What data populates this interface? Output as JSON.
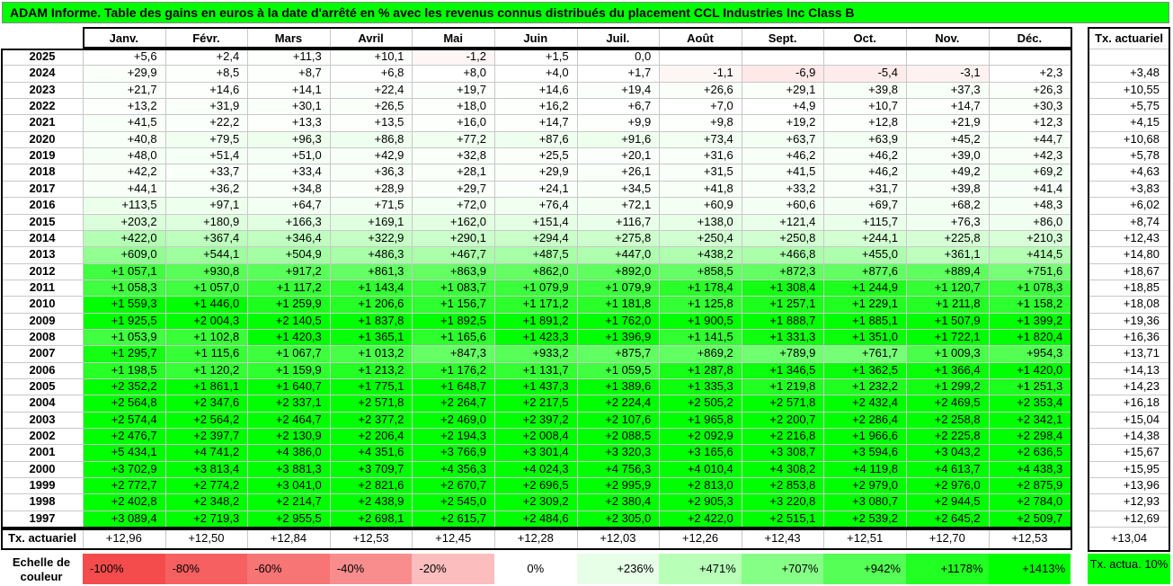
{
  "title": "ADAM Informe. Table des gains en euros à la date d'arrêté en % avec les revenus connus distribués du placement CCL Industries Inc Class B",
  "chart_data": {
    "type": "table",
    "months": [
      "Janv.",
      "Févr.",
      "Mars",
      "Avril",
      "Mai",
      "Juin",
      "Juil.",
      "Août",
      "Sept.",
      "Oct.",
      "Nov.",
      "Déc."
    ],
    "rate_header": "Tx. actuariel",
    "years": [
      "2025",
      "2024",
      "2023",
      "2022",
      "2021",
      "2020",
      "2019",
      "2018",
      "2017",
      "2016",
      "2015",
      "2014",
      "2013",
      "2012",
      "2011",
      "2010",
      "2009",
      "2008",
      "2007",
      "2006",
      "2005",
      "2004",
      "2003",
      "2002",
      "2001",
      "2000",
      "1999",
      "1998",
      "1997"
    ],
    "values": [
      [
        5.6,
        2.4,
        11.3,
        10.1,
        -1.2,
        1.5,
        0.0,
        null,
        null,
        null,
        null,
        null
      ],
      [
        29.9,
        8.5,
        8.7,
        6.8,
        8.0,
        4.0,
        1.7,
        -1.1,
        -6.9,
        -5.4,
        -3.1,
        2.3
      ],
      [
        21.7,
        14.6,
        14.1,
        22.4,
        19.7,
        14.6,
        19.4,
        26.6,
        29.1,
        39.8,
        37.3,
        26.3
      ],
      [
        13.2,
        31.9,
        30.1,
        26.5,
        18.0,
        16.2,
        6.7,
        7.0,
        4.9,
        10.7,
        14.7,
        30.3
      ],
      [
        41.5,
        22.2,
        13.3,
        13.5,
        16.0,
        14.7,
        9.9,
        9.8,
        19.2,
        12.8,
        21.9,
        12.3
      ],
      [
        40.8,
        79.5,
        96.3,
        86.8,
        77.2,
        87.6,
        91.6,
        73.4,
        63.7,
        63.9,
        45.2,
        44.7
      ],
      [
        48.0,
        51.4,
        51.0,
        42.9,
        32.8,
        25.5,
        20.1,
        31.6,
        46.2,
        46.2,
        39.0,
        42.3
      ],
      [
        42.2,
        33.7,
        33.4,
        36.3,
        28.1,
        29.9,
        26.1,
        31.5,
        41.5,
        46.2,
        49.2,
        69.2
      ],
      [
        44.1,
        36.2,
        34.8,
        28.9,
        29.7,
        24.1,
        34.5,
        41.8,
        33.2,
        31.7,
        39.8,
        41.4
      ],
      [
        113.5,
        97.1,
        64.7,
        71.5,
        72.0,
        76.4,
        72.1,
        60.9,
        60.6,
        69.7,
        68.2,
        48.3
      ],
      [
        203.2,
        180.9,
        166.3,
        169.1,
        162.0,
        151.4,
        116.7,
        138.0,
        121.4,
        115.7,
        76.3,
        86.0
      ],
      [
        422.0,
        367.4,
        346.4,
        322.9,
        290.1,
        294.4,
        275.8,
        250.4,
        250.8,
        244.1,
        225.8,
        210.3
      ],
      [
        609.0,
        544.1,
        504.9,
        486.3,
        467.7,
        487.5,
        447.0,
        438.2,
        466.8,
        455.0,
        361.1,
        414.5
      ],
      [
        1057.1,
        930.8,
        917.2,
        861.3,
        863.9,
        862.0,
        892.0,
        858.5,
        872.3,
        877.6,
        889.4,
        751.6
      ],
      [
        1058.3,
        1057.0,
        1117.2,
        1143.4,
        1083.7,
        1079.9,
        1079.9,
        1178.4,
        1308.4,
        1244.9,
        1120.7,
        1078.3
      ],
      [
        1559.3,
        1446.0,
        1259.9,
        1206.6,
        1156.7,
        1171.2,
        1181.8,
        1125.8,
        1257.1,
        1229.1,
        1211.8,
        1158.2
      ],
      [
        1925.5,
        2004.3,
        2140.5,
        1837.8,
        1892.5,
        1891.2,
        1762.0,
        1900.5,
        1888.7,
        1885.1,
        1507.9,
        1399.2
      ],
      [
        1053.9,
        1102.8,
        1420.3,
        1365.1,
        1165.6,
        1423.3,
        1396.9,
        1141.5,
        1331.3,
        1351.0,
        1722.1,
        1820.4
      ],
      [
        1295.7,
        1115.6,
        1067.7,
        1013.2,
        847.3,
        933.2,
        875.7,
        869.2,
        789.9,
        761.7,
        1009.3,
        954.3
      ],
      [
        1198.5,
        1120.2,
        1159.9,
        1213.2,
        1176.2,
        1131.7,
        1059.5,
        1287.8,
        1346.5,
        1362.5,
        1366.4,
        1420.0
      ],
      [
        2352.2,
        1861.1,
        1640.7,
        1775.1,
        1648.7,
        1437.3,
        1389.6,
        1335.3,
        1219.8,
        1232.2,
        1299.2,
        1251.3
      ],
      [
        2564.8,
        2347.6,
        2337.1,
        2571.8,
        2264.7,
        2217.5,
        2224.4,
        2505.2,
        2571.8,
        2432.4,
        2469.5,
        2353.4
      ],
      [
        2574.4,
        2564.2,
        2464.7,
        2377.2,
        2469.0,
        2397.2,
        2107.6,
        1965.8,
        2200.7,
        2286.4,
        2258.8,
        2342.1
      ],
      [
        2476.7,
        2397.7,
        2130.9,
        2206.4,
        2194.3,
        2008.4,
        2088.5,
        2092.9,
        2216.8,
        1966.6,
        2225.8,
        2298.4
      ],
      [
        5434.1,
        4741.2,
        4386.0,
        4351.6,
        3766.9,
        3301.4,
        3320.3,
        3165.6,
        3308.7,
        3594.6,
        3043.2,
        2636.5
      ],
      [
        3702.9,
        3813.4,
        3881.3,
        3709.7,
        4356.3,
        4024.3,
        4756.3,
        4010.4,
        4308.2,
        4119.8,
        4613.7,
        4438.3
      ],
      [
        2772.7,
        2774.2,
        3041.0,
        2821.6,
        2670.7,
        2696.5,
        2995.9,
        2813.0,
        2853.8,
        2979.0,
        2976.0,
        2875.9
      ],
      [
        2402.8,
        2348.2,
        2214.7,
        2438.9,
        2545.0,
        2309.2,
        2380.4,
        2905.3,
        3220.8,
        3080.7,
        2944.5,
        2784.0
      ],
      [
        3089.4,
        2719.3,
        2955.5,
        2698.1,
        2615.7,
        2484.6,
        2305.0,
        2422.0,
        2515.1,
        2539.2,
        2645.2,
        2509.7
      ]
    ],
    "year_rates": [
      null,
      3.48,
      10.55,
      5.75,
      4.15,
      10.68,
      5.78,
      4.63,
      3.83,
      6.02,
      8.74,
      12.43,
      14.8,
      18.67,
      18.85,
      18.08,
      19.36,
      16.36,
      13.71,
      14.13,
      14.23,
      16.18,
      15.04,
      14.38,
      15.67,
      15.95,
      13.96,
      12.93,
      12.69
    ],
    "footer_label": "Tx. actuariel",
    "month_rates": [
      12.96,
      12.5,
      12.84,
      12.53,
      12.45,
      12.28,
      12.03,
      12.26,
      12.43,
      12.51,
      12.7,
      12.53
    ],
    "overall_rate": 13.04
  },
  "legend": {
    "label": "Echelle de couleur",
    "steps": [
      {
        "text": "-100%",
        "color": "#f44c4c"
      },
      {
        "text": "-80%",
        "color": "#f66060"
      },
      {
        "text": "-60%",
        "color": "#f77575"
      },
      {
        "text": "-40%",
        "color": "#f98d8d"
      },
      {
        "text": "-20%",
        "color": "#fbbdbd"
      },
      {
        "text": "0%",
        "color": "#ffffff"
      },
      {
        "text": "+236%",
        "color": "#e7ffe7"
      },
      {
        "text": "+471%",
        "color": "#b8ffb8"
      },
      {
        "text": "+707%",
        "color": "#86ff86"
      },
      {
        "text": "+942%",
        "color": "#55ff55"
      },
      {
        "text": "+1178%",
        "color": "#22ff22"
      },
      {
        "text": "+1413%",
        "color": "#00ff00"
      }
    ],
    "tx_box": "Tx. actua. 10%"
  },
  "colors": {
    "title_bg": "#00ff00",
    "max_green": "#00ff00",
    "neg_red": "#f44c4c"
  }
}
